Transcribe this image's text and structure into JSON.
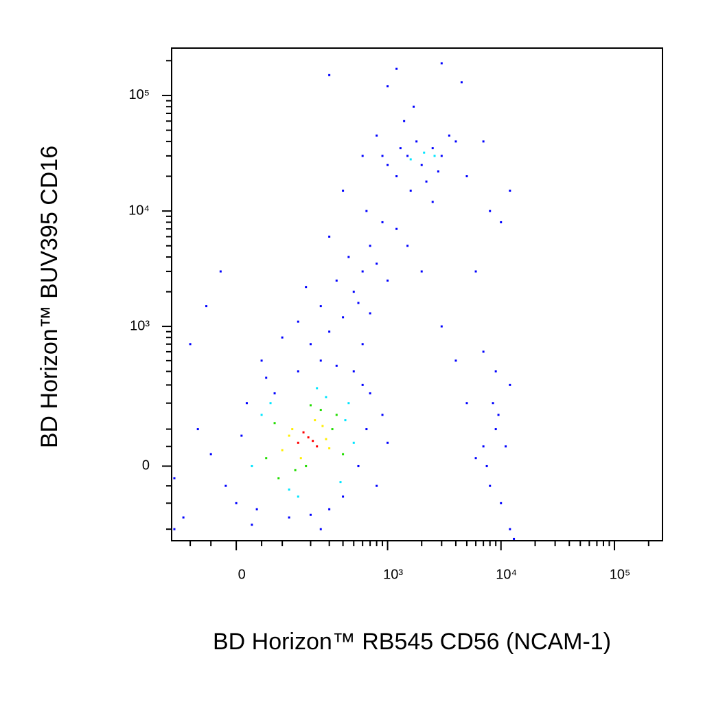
{
  "chart_data": {
    "type": "scatter",
    "x_label": "BD Horizon™ RB545 CD56 (NCAM-1)",
    "y_label": "BD Horizon™ BUV395 CD16",
    "xscale": "biexponential",
    "yscale": "biexponential",
    "xlim": [
      -160,
      265000
    ],
    "ylim": [
      -260,
      257000
    ],
    "xticks": [
      {
        "value": 0,
        "label": "0"
      },
      {
        "value": 1000,
        "label": "10³"
      },
      {
        "value": 10000,
        "label": "10⁴"
      },
      {
        "value": 100000,
        "label": "10⁵"
      }
    ],
    "yticks": [
      {
        "value": 0,
        "label": "0"
      },
      {
        "value": 1000,
        "label": "10³"
      },
      {
        "value": 10000,
        "label": "10⁴"
      },
      {
        "value": 100000,
        "label": "10⁵"
      }
    ],
    "xminorticks": [
      -100,
      -50,
      50,
      100,
      200,
      300,
      400,
      500,
      600,
      700,
      800,
      900,
      2000,
      3000,
      4000,
      5000,
      6000,
      7000,
      8000,
      9000,
      20000,
      30000,
      40000,
      50000,
      60000,
      70000,
      80000,
      90000,
      200000
    ],
    "yminorticks": [
      -200,
      -100,
      -50,
      50,
      100,
      200,
      300,
      400,
      500,
      600,
      700,
      800,
      900,
      2000,
      3000,
      4000,
      5000,
      6000,
      7000,
      8000,
      9000,
      20000,
      30000,
      40000,
      50000,
      60000,
      70000,
      80000,
      90000,
      200000
    ],
    "series": [
      {
        "color": "#0000ff",
        "x": [
          -50,
          -20,
          10,
          0,
          20,
          40,
          80,
          120,
          200,
          300,
          400,
          550,
          650,
          700,
          600,
          500,
          350,
          250,
          150,
          60,
          -80,
          -120,
          -150,
          30,
          250,
          800,
          900,
          1000,
          200,
          300,
          400,
          250,
          500,
          350,
          600,
          450,
          700,
          300,
          900,
          1200,
          800,
          150,
          550,
          1000,
          650,
          400,
          1500,
          2000,
          100,
          180,
          -30,
          50,
          600,
          700,
          1200,
          1500,
          2000,
          2500,
          1800,
          3000,
          1000,
          1600,
          2200,
          3500,
          1300,
          900,
          2800,
          1400,
          1700,
          4000,
          5000,
          800,
          600,
          2500,
          7000,
          8000,
          9000,
          7500,
          10000,
          11000,
          8500,
          6000,
          12000,
          9500,
          8000,
          10000,
          12000,
          6000,
          7000,
          9000,
          13000,
          7000,
          12000,
          3000,
          4000,
          5000,
          -150,
          -100,
          -60,
          300,
          1200,
          3000,
          4500,
          1000
        ],
        "y": [
          30,
          -50,
          80,
          -100,
          200,
          -120,
          250,
          -150,
          -140,
          -120,
          -80,
          0,
          100,
          250,
          300,
          400,
          450,
          500,
          400,
          350,
          100,
          -150,
          -30,
          -180,
          -200,
          -50,
          150,
          60,
          700,
          900,
          1200,
          1500,
          2000,
          2500,
          3000,
          4000,
          5000,
          6000,
          8000,
          7000,
          3500,
          1100,
          1600,
          2500,
          10000,
          15000,
          5000,
          3000,
          800,
          2200,
          3000,
          500,
          700,
          1300,
          20000,
          30000,
          25000,
          35000,
          40000,
          30000,
          25000,
          15000,
          18000,
          45000,
          35000,
          30000,
          22000,
          60000,
          80000,
          40000,
          20000,
          45000,
          30000,
          12000,
          50,
          -50,
          100,
          0,
          -100,
          50,
          200,
          20,
          -200,
          150,
          10000,
          8000,
          15000,
          3000,
          600,
          400,
          -250,
          40000,
          300,
          1000,
          500,
          200,
          -200,
          700,
          1500,
          150000,
          170000,
          190000,
          130000,
          120000
        ]
      },
      {
        "color": "#00e5ff",
        "x": [
          30,
          50,
          450,
          500,
          120,
          280,
          380,
          70,
          230,
          150,
          420,
          1600,
          2100,
          2600
        ],
        "y": [
          0,
          150,
          200,
          60,
          -60,
          230,
          -40,
          200,
          280,
          -80,
          130,
          28000,
          32000,
          30000
        ]
      },
      {
        "color": "#22dd00",
        "x": [
          60,
          80,
          350,
          400,
          140,
          250,
          320,
          90,
          200,
          180
        ],
        "y": [
          20,
          120,
          150,
          30,
          -10,
          170,
          100,
          -30,
          190,
          0
        ]
      },
      {
        "color": "#ffee00",
        "x": [
          100,
          130,
          260,
          300,
          160,
          220,
          120,
          280
        ],
        "y": [
          40,
          100,
          110,
          45,
          20,
          130,
          80,
          70
        ]
      },
      {
        "color": "#ff0000",
        "x": [
          150,
          190,
          230,
          170,
          210
        ],
        "y": [
          60,
          75,
          50,
          90,
          65
        ]
      }
    ]
  }
}
